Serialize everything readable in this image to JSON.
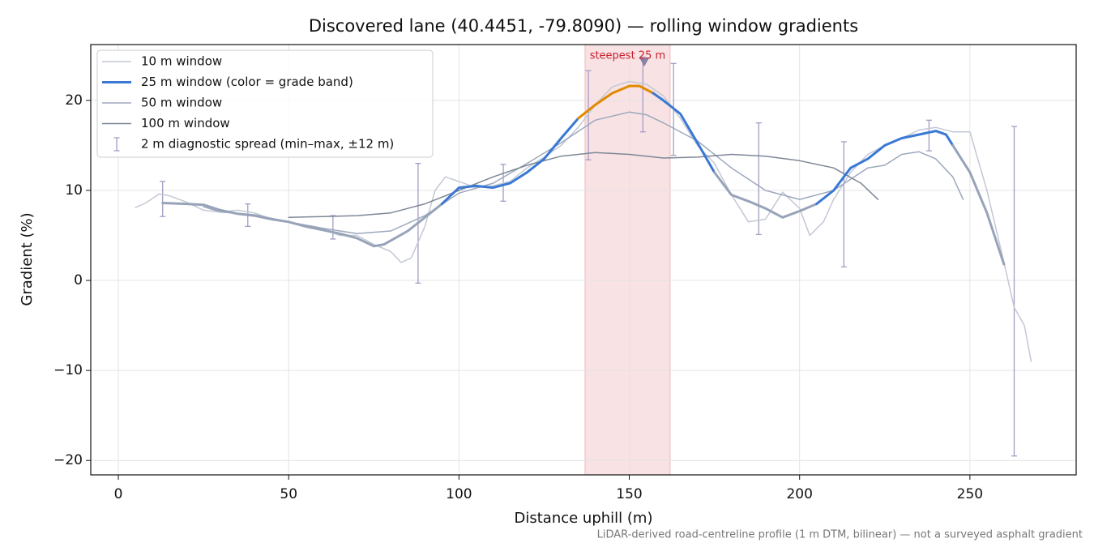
{
  "chart_data": {
    "type": "line",
    "title": "Discovered lane (40.4451, -79.8090) — rolling window gradients",
    "xlabel": "Distance uphill (m)",
    "ylabel": "Gradient (%)",
    "footnote": "LiDAR-derived road-centreline profile (1 m DTM, bilinear) — not a surveyed asphalt gradient",
    "xlim": [
      -8.1,
      281.2
    ],
    "ylim": [
      -21.6,
      26.2
    ],
    "xticks": [
      0,
      50,
      100,
      150,
      200,
      250
    ],
    "yticks": [
      {
        "value": -20,
        "label": "−20"
      },
      {
        "value": -10,
        "label": "−10"
      },
      0,
      10,
      20
    ],
    "grid": true,
    "legend": "upper left",
    "series": [
      {
        "name": "10 m window",
        "color": "#c3c8d4",
        "width": 1.5,
        "x": [
          5,
          8,
          12,
          15,
          20,
          25,
          30,
          35,
          40,
          45,
          50,
          55,
          60,
          65,
          70,
          75,
          80,
          83,
          86,
          90,
          93,
          96,
          100,
          105,
          110,
          115,
          120,
          125,
          130,
          135,
          140,
          145,
          150,
          155,
          160,
          165,
          170,
          175,
          180,
          185,
          190,
          195,
          200,
          203,
          207,
          210,
          215,
          220,
          225,
          230,
          235,
          240,
          245,
          250,
          255,
          260,
          263,
          266,
          268
        ],
        "values": [
          8.1,
          8.6,
          9.6,
          9.4,
          8.7,
          7.8,
          7.6,
          7.8,
          7.5,
          6.8,
          6.5,
          6.0,
          5.7,
          5.0,
          5.0,
          4.0,
          3.2,
          2.0,
          2.5,
          6.0,
          10.0,
          11.5,
          11.0,
          10.3,
          10.5,
          11.0,
          12.5,
          13.7,
          15.0,
          17.0,
          19.5,
          21.5,
          22.1,
          21.8,
          20.5,
          18.0,
          15.0,
          13.0,
          9.5,
          6.5,
          6.8,
          9.8,
          8.0,
          5.0,
          6.5,
          9.0,
          12.0,
          14.0,
          15.0,
          15.8,
          16.7,
          17.0,
          16.5,
          16.5,
          10.0,
          2.0,
          -3.0,
          -5.0,
          -9.0
        ]
      },
      {
        "name": "25 m window (color = grade band)",
        "color": "#3a78d4",
        "width": 3,
        "thresholds": [
          10,
          20
        ],
        "band_colors": [
          "#97a3b8",
          "#3a78d4",
          "#e08a00"
        ],
        "x": [
          13,
          20,
          25,
          30,
          35,
          40,
          45,
          50,
          55,
          60,
          65,
          70,
          75,
          78,
          85,
          90,
          95,
          100,
          105,
          110,
          115,
          120,
          125,
          130,
          135,
          140,
          145,
          150,
          153,
          157,
          160,
          165,
          170,
          175,
          180,
          185,
          190,
          195,
          200,
          205,
          210,
          215,
          220,
          225,
          230,
          235,
          240,
          243,
          245,
          250,
          255,
          260
        ],
        "values": [
          8.6,
          8.5,
          8.4,
          7.8,
          7.4,
          7.2,
          6.8,
          6.5,
          6.0,
          5.6,
          5.2,
          4.7,
          3.8,
          4.0,
          5.5,
          7.0,
          8.5,
          10.3,
          10.5,
          10.3,
          10.8,
          12.0,
          13.5,
          15.8,
          18.0,
          19.5,
          20.8,
          21.6,
          21.6,
          20.8,
          20.0,
          18.5,
          15.3,
          12.0,
          9.5,
          8.8,
          8.0,
          7.0,
          7.7,
          8.5,
          10.0,
          12.5,
          13.5,
          15.0,
          15.8,
          16.2,
          16.6,
          16.2,
          15.0,
          12.0,
          7.5,
          1.8
        ]
      },
      {
        "name": "50 m window",
        "color": "#9da8bd",
        "width": 1.5,
        "x": [
          25,
          30,
          40,
          50,
          60,
          70,
          80,
          90,
          100,
          110,
          120,
          130,
          140,
          150,
          155,
          160,
          170,
          180,
          190,
          200,
          210,
          220,
          225,
          230,
          235,
          240,
          245,
          248
        ],
        "values": [
          8.2,
          7.6,
          7.3,
          6.5,
          5.8,
          5.2,
          5.5,
          7.2,
          9.7,
          10.8,
          13.0,
          15.3,
          17.8,
          18.7,
          18.4,
          17.5,
          15.5,
          12.5,
          10.0,
          9.0,
          10.0,
          12.5,
          12.8,
          14.0,
          14.3,
          13.5,
          11.5,
          9.0
        ]
      },
      {
        "name": "100 m window",
        "color": "#7d8797",
        "width": 1.5,
        "x": [
          50,
          60,
          70,
          80,
          90,
          100,
          110,
          120,
          130,
          140,
          150,
          160,
          170,
          180,
          190,
          200,
          210,
          218,
          223
        ],
        "values": [
          7.0,
          7.1,
          7.2,
          7.5,
          8.5,
          10.0,
          11.5,
          12.8,
          13.8,
          14.2,
          14.0,
          13.6,
          13.7,
          14.0,
          13.8,
          13.3,
          12.5,
          10.8,
          9.0
        ]
      }
    ],
    "error_bars": {
      "name": "2 m diagnostic spread (min–max, ±12 m)",
      "color": "#a49cc4",
      "x": [
        13,
        38,
        63,
        88,
        113,
        138,
        154,
        163,
        188,
        213,
        238,
        263
      ],
      "low": [
        7.1,
        6.0,
        4.6,
        -0.3,
        8.8,
        13.4,
        16.5,
        13.9,
        5.1,
        1.5,
        14.4,
        -19.5
      ],
      "high": [
        11.0,
        8.5,
        7.2,
        13.0,
        12.9,
        23.3,
        24.8,
        24.1,
        17.5,
        15.4,
        17.8,
        17.1
      ]
    },
    "steepest": {
      "label": "steepest 25 m",
      "x_range": [
        137,
        162
      ],
      "marker_x": 154.4,
      "marker_y": 24.2,
      "color": "#c8202e"
    }
  }
}
